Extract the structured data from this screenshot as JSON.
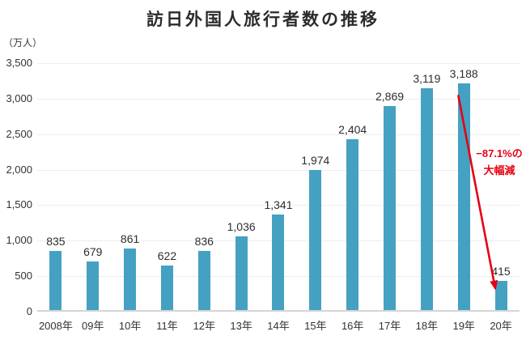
{
  "chart_data": {
    "type": "bar",
    "title": "訪日外国人旅行者数の推移",
    "unit_label": "（万人）",
    "categories": [
      "2008年",
      "09年",
      "10年",
      "11年",
      "12年",
      "13年",
      "14年",
      "15年",
      "16年",
      "17年",
      "18年",
      "19年",
      "20年"
    ],
    "values": [
      835,
      679,
      861,
      622,
      836,
      1036,
      1341,
      1974,
      2404,
      2869,
      3119,
      3188,
      415
    ],
    "value_labels": [
      "835",
      "679",
      "861",
      "622",
      "836",
      "1,036",
      "1,341",
      "1,974",
      "2,404",
      "2,869",
      "3,119",
      "3,188",
      "415"
    ],
    "xlabel": "",
    "ylabel": "（万人）",
    "ylim": [
      0,
      3500
    ],
    "ytick_interval": 500,
    "ytick_labels": [
      "0",
      "500",
      "1,000",
      "1,500",
      "2,000",
      "2,500",
      "3,000",
      "3,500"
    ],
    "grid": true,
    "legend": false,
    "bar_color": "#45a1c2",
    "grid_color": "#ededed",
    "axis_color": "#d4d4d4",
    "text_color": "#333333",
    "annotation": {
      "line1": "−87.1%の",
      "line2": "大幅減",
      "color": "#e60012",
      "arrow_from": "19年",
      "arrow_to": "20年"
    }
  }
}
